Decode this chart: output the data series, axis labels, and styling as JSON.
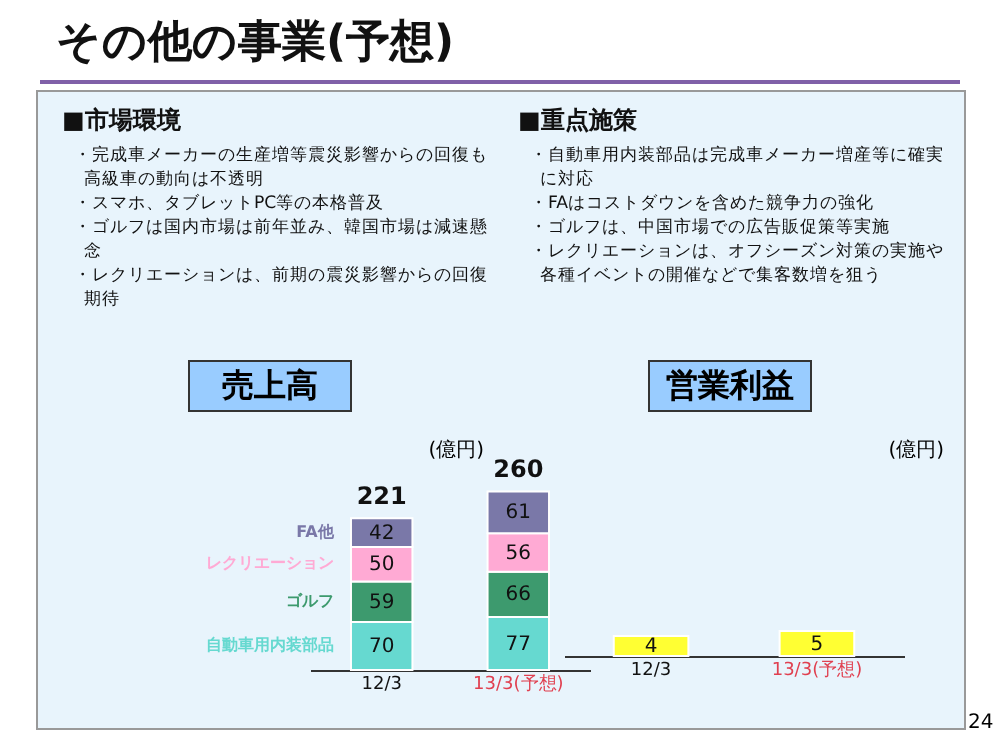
{
  "chart_data": [
    {
      "type": "other",
      "title": "その他の事業(予想)",
      "annotations": [
        "■市場環境",
        "・完成車メーカーの生産増等震災影響からの回復も高級車の動向は不透明",
        "・スマホ、タブレットPC等の本格普及",
        "・ゴルフは国内市場は前年並み、韓国市場は減速懸念",
        "・レクリエーションは、前期の震災影響からの回復期待",
        "■重点施策",
        "・自動車用内装部品は完成車メーカー増産等に確実に対応",
        "・FAはコストダウンを含めた競争力の強化",
        "・ゴルフは、中国市場での広告販促策等実施",
        "・レクリエーションは、オフシーズン対策の実施や各種イベントの開催などで集客数増を狙う",
        "24"
      ]
    },
    {
      "type": "bar",
      "title": "売上高",
      "ylabel": "(億円)",
      "categories": [
        "12/3",
        "13/3(予想)"
      ],
      "stacked": true,
      "data_labels": true,
      "totals": [
        "221",
        "260"
      ],
      "series": [
        {
          "name": "自動車用内装部品",
          "color": "#66d9d0",
          "values": [
            70,
            77
          ]
        },
        {
          "name": "ゴルフ",
          "color": "#3d9a6e",
          "values": [
            59,
            66
          ]
        },
        {
          "name": "レクリエーション",
          "color": "#ffaad4",
          "values": [
            50,
            56
          ]
        },
        {
          "name": "FA他",
          "color": "#7a78a8",
          "values": [
            42,
            61
          ]
        }
      ]
    },
    {
      "type": "bar",
      "title": "営業利益",
      "ylabel": "(億円)",
      "categories": [
        "12/3",
        "13/3(予想)"
      ],
      "data_labels": true,
      "values": [
        4,
        5
      ],
      "color": "#ffff33"
    }
  ]
}
